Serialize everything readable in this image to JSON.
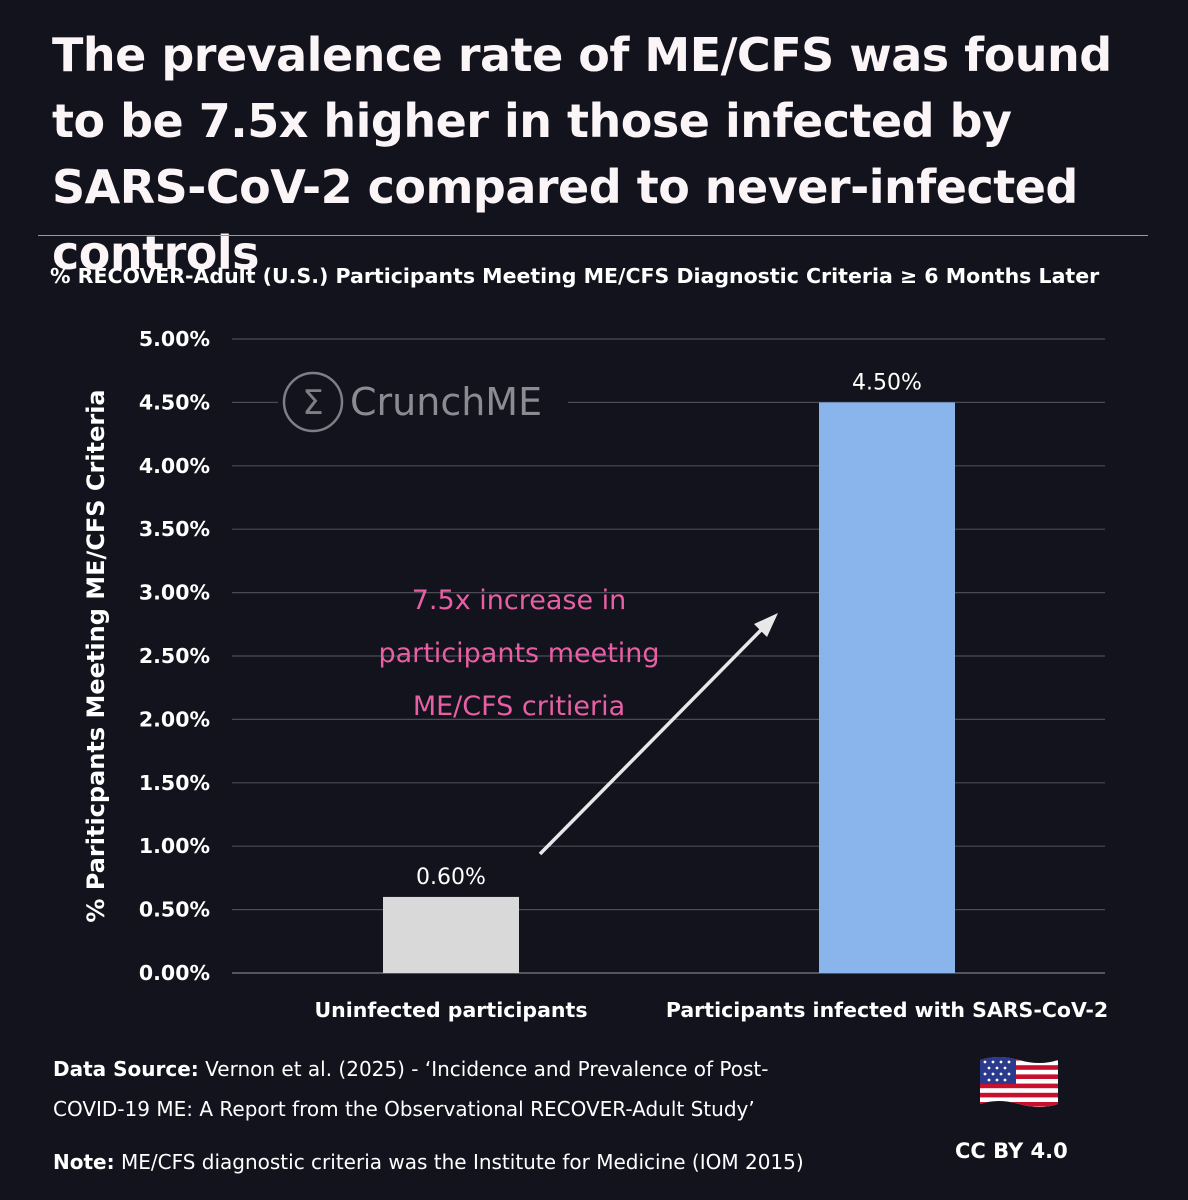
{
  "title": "The prevalence rate of ME/CFS was found to be 7.5x higher in those infected by SARS-CoV-2 compared to never-infected controls",
  "chart_data": {
    "type": "bar",
    "title": "% RECOVER-Adult (U.S.) Participants Meeting ME/CFS Diagnostic Criteria ≥ 6 Months Later",
    "ylabel": "% Pariticpants Meeting ME/CFS Criteria",
    "xlabel": "",
    "categories": [
      "Uninfected participants",
      "Participants infected with SARS-CoV-2"
    ],
    "values": [
      0.6,
      4.5
    ],
    "data_labels": [
      "0.60%",
      "4.50%"
    ],
    "bar_colors": [
      "#d9d9d9",
      "#8ab4ec"
    ],
    "ylim": [
      0,
      5
    ],
    "yticks": [
      "0.00%",
      "0.50%",
      "1.00%",
      "1.50%",
      "2.00%",
      "2.50%",
      "3.00%",
      "3.50%",
      "4.00%",
      "4.50%",
      "5.00%"
    ],
    "grid": true,
    "annotation": {
      "lines": [
        "7.5x increase in",
        "participants meeting",
        "ME/CFS critieria"
      ],
      "color": "#e85fa5"
    },
    "watermark": "CrunchME"
  },
  "footer": {
    "source_label": "Data Source:",
    "source_line1": " Vernon et al. (2025) - ‘Incidence and Prevalence of Post-",
    "source_line2": "COVID-19 ME: A Report from the Observational RECOVER-Adult Study’",
    "note_label": "Note:",
    "note_text": " ME/CFS diagnostic criteria was the Institute for Medicine (IOM 2015)",
    "license": "CC BY 4.0"
  },
  "colors": {
    "background": "#12131c",
    "grid": "#4a4b55",
    "annotation": "#e85fa5",
    "infected_bar": "#8ab4ec",
    "uninfected_bar": "#d9d9d9"
  }
}
